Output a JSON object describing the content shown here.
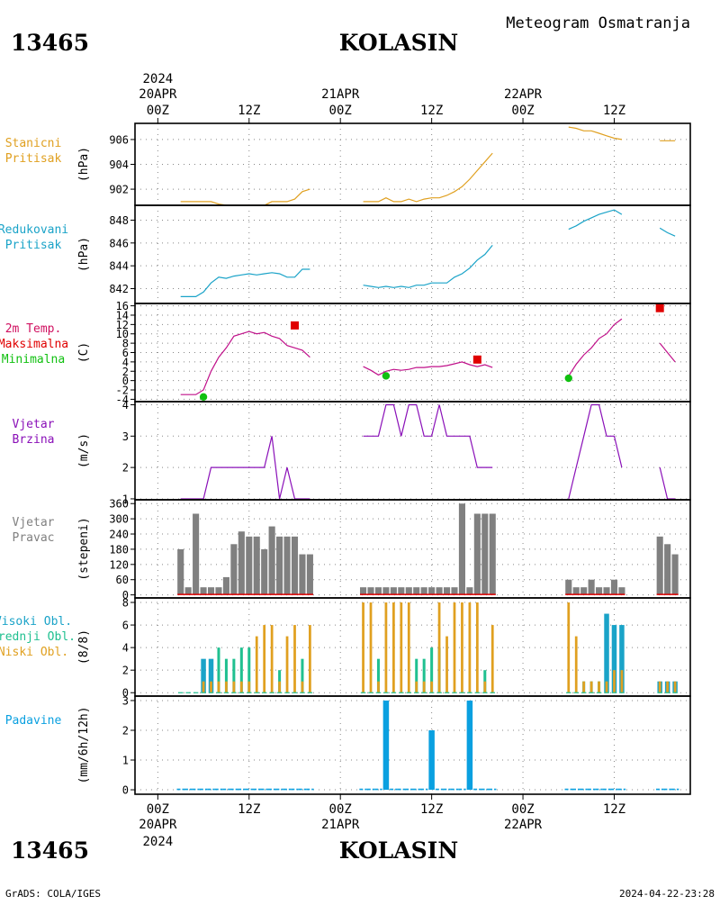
{
  "header": {
    "station_id": "13465",
    "station_name": "KOLASIN",
    "subtitle": "Meteogram Osmatranja"
  },
  "footer": {
    "station_id": "13465",
    "station_name": "KOLASIN",
    "credit": "GrADS: COLA/IGES",
    "timestamp": "2024-04-22-23:28"
  },
  "time_axis": {
    "year": "2024",
    "day_labels": [
      {
        "x": 0,
        "day": "20APR",
        "hour": "00Z",
        "year": "2024"
      },
      {
        "x": 24,
        "day": "21APR",
        "hour": "00Z",
        "year": ""
      },
      {
        "x": 48,
        "day": "22APR",
        "hour": "00Z",
        "year": ""
      }
    ],
    "mid_labels": [
      {
        "x": 12,
        "hour": "12Z"
      },
      {
        "x": 36,
        "hour": "12Z"
      },
      {
        "x": 60,
        "hour": "12Z"
      }
    ],
    "unit": "hours since 2024-04-20 00Z",
    "range": [
      -3,
      70
    ]
  },
  "chart_data": [
    {
      "id": "station_pressure",
      "type": "line",
      "label_lines": [
        "Stanicni",
        "Pritisak"
      ],
      "ylabel": "(hPa)",
      "ylim": [
        900.7,
        907.3
      ],
      "yticks": [
        902,
        904,
        906
      ],
      "grid": true,
      "color": "#e0a020",
      "series": [
        {
          "x": [
            3,
            4,
            5,
            6,
            7,
            8,
            9,
            10,
            11,
            12,
            13,
            14,
            15,
            16,
            17,
            18,
            19,
            20
          ],
          "values": [
            901.0,
            901.0,
            901.0,
            901.0,
            901.0,
            900.8,
            900.7,
            900.7,
            900.7,
            900.7,
            900.7,
            900.7,
            901.0,
            901.0,
            901.0,
            901.2,
            901.8,
            902.0
          ]
        },
        {
          "x": [
            27,
            28,
            29,
            30,
            31,
            32,
            33,
            34,
            35,
            36,
            37,
            38,
            39,
            40,
            41,
            42,
            43,
            44
          ],
          "values": [
            901.0,
            901.0,
            901.0,
            901.3,
            901.0,
            901.0,
            901.2,
            901.0,
            901.2,
            901.3,
            901.3,
            901.5,
            901.8,
            902.2,
            902.8,
            903.5,
            904.2,
            904.9
          ]
        },
        {
          "x": [
            54,
            55,
            56,
            57,
            58,
            59,
            60,
            61
          ],
          "values": [
            907.0,
            906.9,
            906.7,
            906.7,
            906.5,
            906.3,
            906.1,
            906.0
          ]
        },
        {
          "x": [
            66,
            67,
            68
          ],
          "values": [
            905.9,
            905.9,
            905.9
          ]
        }
      ]
    },
    {
      "id": "reduced_pressure",
      "type": "line",
      "label_lines": [
        "Redukovani",
        "Pritisak"
      ],
      "ylabel": "(hPa)",
      "ylim": [
        840.7,
        849.3
      ],
      "yticks": [
        842,
        844,
        846,
        848
      ],
      "grid": true,
      "color": "#1aa3c8",
      "series": [
        {
          "x": [
            3,
            4,
            5,
            6,
            7,
            8,
            9,
            10,
            11,
            12,
            13,
            14,
            15,
            16,
            17,
            18,
            19,
            20
          ],
          "values": [
            841.3,
            841.3,
            841.3,
            841.7,
            842.5,
            843.0,
            842.9,
            843.1,
            843.2,
            843.3,
            843.2,
            843.3,
            843.4,
            843.3,
            843.0,
            843.0,
            843.7,
            843.7
          ]
        },
        {
          "x": [
            27,
            28,
            29,
            30,
            31,
            32,
            33,
            34,
            35,
            36,
            37,
            38,
            39,
            40,
            41,
            42,
            43,
            44
          ],
          "values": [
            842.3,
            842.2,
            842.1,
            842.2,
            842.1,
            842.2,
            842.1,
            842.3,
            842.3,
            842.5,
            842.5,
            842.5,
            843.0,
            843.3,
            843.8,
            844.5,
            845.0,
            845.8
          ]
        },
        {
          "x": [
            54,
            55,
            56,
            57,
            58,
            59,
            60,
            61
          ],
          "values": [
            847.2,
            847.5,
            847.9,
            848.2,
            848.5,
            848.7,
            848.9,
            848.5
          ]
        },
        {
          "x": [
            66,
            67,
            68
          ],
          "values": [
            847.3,
            846.9,
            846.6
          ]
        }
      ]
    },
    {
      "id": "temperature",
      "type": "line",
      "label_lines": [
        "2m Temp.",
        "Maksimalna",
        "Minimalna"
      ],
      "label_colors": [
        "#d01060",
        "#e00000",
        "#10c010"
      ],
      "ylabel": "(C)",
      "ylim": [
        -4.5,
        16.5
      ],
      "yticks": [
        -4,
        -2,
        0,
        2,
        4,
        6,
        8,
        10,
        12,
        14,
        16
      ],
      "grid": true,
      "color": "#c0108a",
      "series": [
        {
          "x": [
            3,
            4,
            5,
            6,
            7,
            8,
            9,
            10,
            11,
            12,
            13,
            14,
            15,
            16,
            17,
            18,
            19,
            20
          ],
          "values": [
            -3.0,
            -3.0,
            -3.0,
            -2.0,
            2.0,
            5.0,
            7.0,
            9.5,
            10.0,
            10.5,
            10.0,
            10.3,
            9.5,
            9.0,
            7.5,
            7.0,
            6.5,
            5.0
          ]
        },
        {
          "x": [
            27,
            28,
            29,
            30,
            31,
            32,
            33,
            34,
            35,
            36,
            37,
            38,
            39,
            40,
            41,
            42,
            43,
            44
          ],
          "values": [
            3.0,
            2.2,
            1.2,
            2.0,
            2.4,
            2.2,
            2.4,
            2.8,
            2.8,
            3.0,
            3.0,
            3.2,
            3.6,
            4.0,
            3.4,
            3.0,
            3.4,
            2.8
          ]
        },
        {
          "x": [
            54,
            55,
            56,
            57,
            58,
            59,
            60,
            61
          ],
          "values": [
            1.0,
            3.5,
            5.5,
            7.0,
            9.0,
            10.0,
            12.0,
            13.2
          ]
        },
        {
          "x": [
            66,
            67,
            68
          ],
          "values": [
            8.0,
            6.0,
            4.0
          ]
        }
      ],
      "markers": [
        {
          "name": "Maksimalna",
          "color": "#e00000",
          "shape": "square",
          "x": [
            18,
            42,
            66
          ],
          "values": [
            11.8,
            4.5,
            15.5
          ]
        },
        {
          "name": "Minimalna",
          "color": "#10c010",
          "shape": "circle",
          "x": [
            6,
            30,
            54
          ],
          "values": [
            -3.5,
            1.0,
            0.5
          ]
        }
      ]
    },
    {
      "id": "wind_speed",
      "type": "line",
      "label_lines": [
        "Vjetar",
        "Brzina"
      ],
      "ylabel": "(m/s)",
      "ylim": [
        0.97,
        4.1
      ],
      "yticks": [
        1,
        2,
        3,
        4
      ],
      "grid": true,
      "color": "#8a10b8",
      "series": [
        {
          "x": [
            3,
            4,
            5,
            6,
            7,
            8,
            9,
            10,
            11,
            12,
            13,
            14,
            15,
            16,
            17,
            18,
            19,
            20
          ],
          "values": [
            1,
            1,
            1,
            1,
            2,
            2,
            2,
            2,
            2,
            2,
            2,
            2,
            3,
            1,
            2,
            1,
            1,
            1
          ]
        },
        {
          "x": [
            27,
            28,
            29,
            30,
            31,
            32,
            33,
            34,
            35,
            36,
            37,
            38,
            39,
            40,
            41,
            42,
            43,
            44
          ],
          "values": [
            3,
            3,
            3,
            4,
            4,
            3,
            4,
            4,
            3,
            3,
            4,
            3,
            3,
            3,
            3,
            2,
            2,
            2
          ]
        },
        {
          "x": [
            54,
            55,
            56,
            57,
            58,
            59,
            60,
            61
          ],
          "values": [
            1,
            2,
            3,
            4,
            4,
            3,
            3,
            2
          ]
        },
        {
          "x": [
            66,
            67,
            68
          ],
          "values": [
            2,
            1,
            1
          ]
        }
      ]
    },
    {
      "id": "wind_direction",
      "type": "bar",
      "label_lines": [
        "Vjetar",
        "Pravac"
      ],
      "ylabel": "(stepeni)",
      "ylim": [
        -12,
        375
      ],
      "yticks": [
        0,
        60,
        120,
        180,
        240,
        300,
        360
      ],
      "grid": true,
      "color": "#808080",
      "baseline_color": "#e00000",
      "x": [
        3,
        4,
        5,
        6,
        7,
        8,
        9,
        10,
        11,
        12,
        13,
        14,
        15,
        16,
        17,
        18,
        19,
        20,
        27,
        28,
        29,
        30,
        31,
        32,
        33,
        34,
        35,
        36,
        37,
        38,
        39,
        40,
        41,
        42,
        43,
        44,
        54,
        55,
        56,
        57,
        58,
        59,
        60,
        61,
        66,
        67,
        68
      ],
      "values": [
        180,
        30,
        320,
        30,
        30,
        30,
        70,
        200,
        250,
        230,
        230,
        180,
        270,
        230,
        230,
        230,
        160,
        160,
        30,
        30,
        30,
        30,
        30,
        30,
        30,
        30,
        30,
        30,
        30,
        30,
        30,
        360,
        30,
        320,
        320,
        320,
        60,
        30,
        30,
        60,
        30,
        30,
        60,
        30,
        230,
        200,
        160
      ]
    },
    {
      "id": "cloud_cover",
      "type": "bar",
      "label_lines": [
        "Visoki Obl.",
        "Srednji Obl.",
        "Niski Obl."
      ],
      "label_colors": [
        "#1aa3c8",
        "#20c090",
        "#e0a020"
      ],
      "ylabel": "(8/8)",
      "ylim": [
        -0.3,
        8.4
      ],
      "yticks": [
        0,
        2,
        4,
        6,
        8
      ],
      "grid": true,
      "x": [
        3,
        4,
        5,
        6,
        7,
        8,
        9,
        10,
        11,
        12,
        13,
        14,
        15,
        16,
        17,
        18,
        19,
        20,
        27,
        28,
        29,
        30,
        31,
        32,
        33,
        34,
        35,
        36,
        37,
        38,
        39,
        40,
        41,
        42,
        43,
        44,
        54,
        55,
        56,
        57,
        58,
        59,
        60,
        61,
        66,
        67,
        68
      ],
      "series": [
        {
          "name": "Visoki Obl.",
          "color": "#1aa3c8",
          "values": [
            0,
            0,
            0,
            3,
            3,
            0,
            0,
            0,
            0,
            0,
            0,
            0,
            0,
            0,
            0,
            0,
            0,
            0,
            0,
            0,
            0,
            0,
            0,
            0,
            0,
            0,
            0,
            0,
            0,
            0,
            0,
            0,
            0,
            0,
            0,
            0,
            0,
            0,
            0,
            0,
            0,
            7,
            6,
            6,
            1,
            1,
            1
          ]
        },
        {
          "name": "Srednji Obl.",
          "color": "#20c090",
          "values": [
            0,
            0,
            0,
            0,
            0,
            4,
            3,
            3,
            4,
            4,
            0,
            0,
            0,
            2,
            0,
            0,
            3,
            0,
            0,
            0,
            3,
            0,
            0,
            0,
            0,
            3,
            3,
            4,
            4,
            0,
            0,
            0,
            0,
            0,
            2,
            0,
            0,
            0,
            1,
            1,
            1,
            1,
            0,
            0,
            0,
            0,
            0
          ]
        },
        {
          "name": "Niski Obl.",
          "color": "#e0a020",
          "values": [
            0,
            0,
            0,
            1,
            1,
            1,
            1,
            1,
            1,
            1,
            5,
            6,
            6,
            1,
            5,
            6,
            1,
            6,
            8,
            8,
            1,
            8,
            8,
            8,
            8,
            1,
            1,
            1,
            8,
            5,
            8,
            8,
            8,
            8,
            1,
            6,
            8,
            5,
            1,
            1,
            1,
            1,
            2,
            2,
            1,
            1,
            1
          ]
        }
      ]
    },
    {
      "id": "precipitation",
      "type": "bar",
      "label_lines": [
        "Padavine"
      ],
      "ylabel": "(mm/6h/12h)",
      "ylim": [
        -0.15,
        3.15
      ],
      "yticks": [
        0,
        1,
        2,
        3
      ],
      "grid": true,
      "color": "#0aa0e0",
      "x": [
        3,
        4,
        5,
        6,
        7,
        8,
        9,
        10,
        11,
        12,
        13,
        14,
        15,
        16,
        17,
        18,
        19,
        20,
        27,
        28,
        29,
        30,
        31,
        32,
        33,
        34,
        35,
        36,
        37,
        38,
        39,
        40,
        41,
        42,
        43,
        44,
        54,
        55,
        56,
        57,
        58,
        59,
        60,
        61,
        66,
        67,
        68
      ],
      "values": [
        0,
        0,
        0,
        0,
        0,
        0,
        0,
        0,
        0,
        0,
        0,
        0,
        0,
        0,
        0,
        0,
        0,
        0,
        0,
        0,
        0,
        3,
        0,
        0,
        0,
        0,
        0,
        2,
        0,
        0,
        0,
        0,
        3,
        0,
        0,
        0,
        0,
        0,
        0,
        0,
        0,
        0,
        0,
        0,
        0,
        0,
        0
      ]
    }
  ]
}
